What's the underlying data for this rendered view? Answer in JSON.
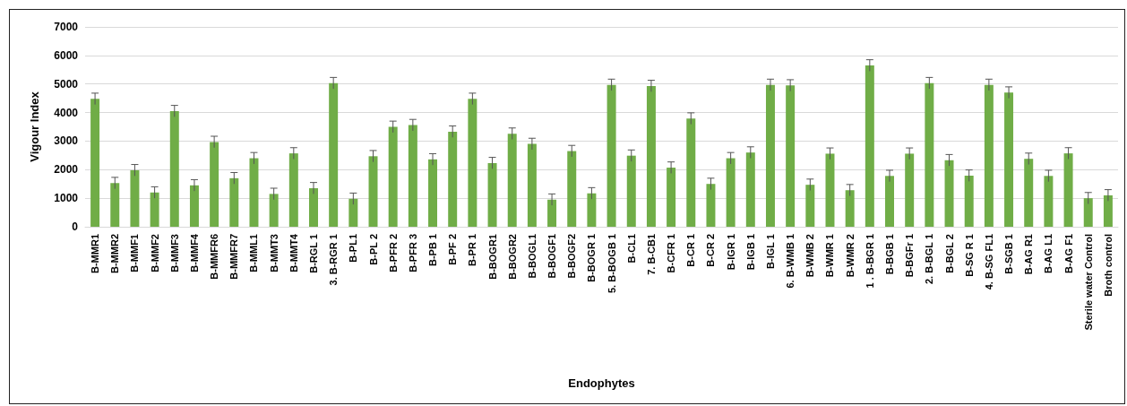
{
  "chart_data": {
    "type": "bar",
    "xlabel": "Endophytes",
    "ylabel": "Vigour Index",
    "categories": [
      "B-MMR1",
      "B-MMR2",
      "B-MMF1",
      "B-MMF2",
      "B-MMF3",
      "B-MMF4",
      "B-MMFR6",
      "B-MMFR7",
      "B-MML1",
      "B-MMT3",
      "B-MMT4",
      "B-RGL 1",
      "3. B-RGR 1",
      "B-PL1",
      "B-PL 2",
      "B-PFR 2",
      "B-PFR 3",
      "B-PB 1",
      "B-PF 2",
      "B-PR 1",
      "B-BOGR1",
      "B-BOGR2",
      "B-BOGL1",
      "B-BOGF1",
      "B-BOGF2",
      "B-BOGR 1",
      "5. B-BOGB 1",
      "B-CL1",
      "7. B-CB1",
      "B-CFR 1",
      "B-CR 1",
      "B-CR 2",
      "B-IGR 1",
      "B-IGB 1",
      "B-IGL 1",
      "6. B-WMB 1",
      "B-WMB 2",
      "B-WMR 1",
      "B-WMR 2",
      "1 . B-BGR 1",
      "B-BGB 1",
      "B-BGFr 1",
      "2. B-BGL 1",
      "B-BGL 2",
      "B-SG R 1",
      "4. B-SG FL1",
      "B-SGB 1",
      "B-AG R1",
      "B-AG L1",
      "B-AG F1",
      "Sterile water Control",
      "Broth control"
    ],
    "values": [
      4480,
      1530,
      1980,
      1200,
      4050,
      1450,
      2970,
      1700,
      2400,
      1150,
      2570,
      1350,
      5030,
      980,
      2470,
      3500,
      3560,
      2360,
      3330,
      4480,
      2230,
      3260,
      2900,
      950,
      2650,
      1170,
      4970,
      2490,
      4930,
      2070,
      3790,
      1500,
      2400,
      2600,
      4970,
      4950,
      1470,
      2560,
      1280,
      5650,
      1780,
      2560,
      5030,
      2330,
      1790,
      4970,
      4700,
      2380,
      1780,
      2570,
      1000,
      1100
    ],
    "errors": [
      200,
      200,
      200,
      200,
      200,
      200,
      200,
      200,
      200,
      200,
      200,
      200,
      200,
      200,
      200,
      200,
      200,
      200,
      200,
      200,
      200,
      200,
      200,
      200,
      200,
      200,
      200,
      200,
      200,
      200,
      200,
      200,
      200,
      200,
      200,
      200,
      200,
      200,
      200,
      200,
      200,
      200,
      200,
      200,
      200,
      200,
      200,
      200,
      200,
      200,
      200,
      200
    ],
    "color": "#70ad47",
    "ylim": [
      0,
      7000
    ],
    "yticks": [
      0,
      1000,
      2000,
      3000,
      4000,
      5000,
      6000,
      7000
    ],
    "grid": "y"
  }
}
